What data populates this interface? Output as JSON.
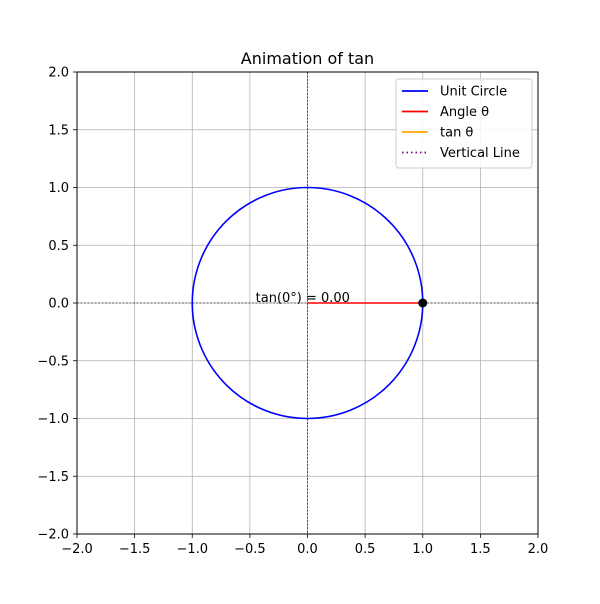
{
  "chart_data": {
    "type": "line",
    "title": "Animation of tan",
    "xlabel": "",
    "ylabel": "",
    "xlim": [
      -2.0,
      2.0
    ],
    "ylim": [
      -2.0,
      2.0
    ],
    "xticks": [
      -2.0,
      -1.5,
      -1.0,
      -0.5,
      0.0,
      0.5,
      1.0,
      1.5,
      2.0
    ],
    "yticks": [
      -2.0,
      -1.5,
      -1.0,
      -0.5,
      0.0,
      0.5,
      1.0,
      1.5,
      2.0
    ],
    "xtick_labels": [
      "−2.0",
      "−1.5",
      "−1.0",
      "−0.5",
      "0.0",
      "0.5",
      "1.0",
      "1.5",
      "2.0"
    ],
    "ytick_labels": [
      "−2.0",
      "−1.5",
      "−1.0",
      "−0.5",
      "0.0",
      "0.5",
      "1.0",
      "1.5",
      "2.0"
    ],
    "grid": true,
    "legend_position": "top-right",
    "series": [
      {
        "name": "Unit Circle",
        "color": "#0000ff",
        "style": "solid",
        "shape": "circle",
        "center": [
          0,
          0
        ],
        "radius": 1.0
      },
      {
        "name": "Angle θ",
        "color": "#ff0000",
        "style": "solid",
        "x": [
          0.0,
          1.0
        ],
        "y": [
          0.0,
          0.0
        ]
      },
      {
        "name": "tan θ",
        "color": "#ffa500",
        "style": "solid",
        "x": [
          1.0,
          1.0
        ],
        "y": [
          0.0,
          0.0
        ]
      },
      {
        "name": "Vertical Line",
        "color": "#800080",
        "style": "dotted",
        "x": [
          1.0,
          1.0
        ],
        "y": [
          0.0,
          0.0
        ]
      }
    ],
    "point": {
      "x": 1.0,
      "y": 0.0,
      "color": "#000000"
    },
    "reference_lines": {
      "color": "#000000",
      "style": "dashed",
      "x": 0.0,
      "y": 0.0
    },
    "annotation": {
      "text": "tan(0°) = 0.00",
      "x": -0.45,
      "y": 0.0
    }
  }
}
